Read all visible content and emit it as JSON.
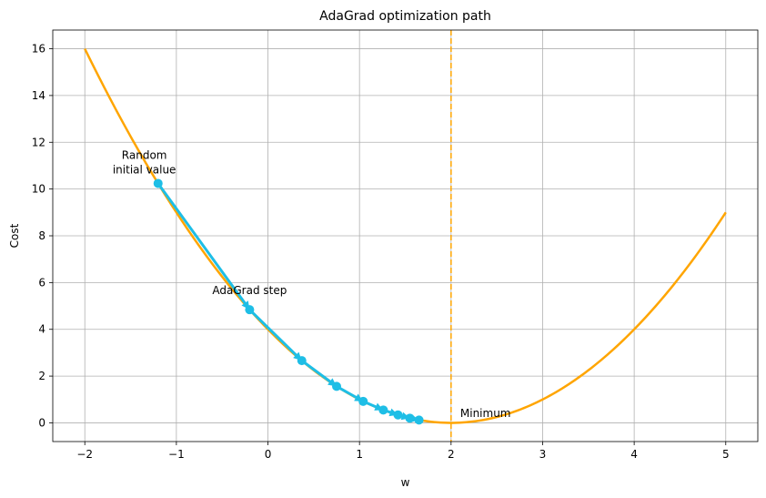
{
  "chart_data": {
    "type": "line",
    "title": "AdaGrad optimization path",
    "xlabel": "w",
    "ylabel": "Cost",
    "xlim": [
      -2.35,
      5.35
    ],
    "ylim": [
      -0.8,
      16.8
    ],
    "xticks": [
      -2,
      -1,
      0,
      1,
      2,
      3,
      4,
      5
    ],
    "yticks": [
      0,
      2,
      4,
      6,
      8,
      10,
      12,
      14,
      16
    ],
    "grid": true,
    "cost_curve": {
      "function": "(w-2)^2",
      "x_range": [
        -2,
        5
      ],
      "color": "#FFA500"
    },
    "minimum_line": {
      "x": 2,
      "color": "#FFA500",
      "style": "dashed"
    },
    "path": {
      "color": "#1EBEE6",
      "x": [
        -1.2,
        -0.2,
        0.37,
        0.75,
        1.04,
        1.26,
        1.42,
        1.55,
        1.65
      ],
      "y": [
        10.24,
        4.84,
        2.66,
        1.56,
        0.92,
        0.55,
        0.34,
        0.2,
        0.12
      ]
    },
    "annotations": [
      {
        "name": "random-initial-value",
        "lines": [
          "Random",
          "initial value"
        ],
        "x": -1.2,
        "y": 10.24
      },
      {
        "name": "adagrad-step",
        "lines": [
          "AdaGrad step"
        ],
        "x": -0.2,
        "y": 4.84
      },
      {
        "name": "minimum",
        "lines": [
          "Minimum"
        ],
        "x": 2,
        "y": 0
      }
    ]
  }
}
